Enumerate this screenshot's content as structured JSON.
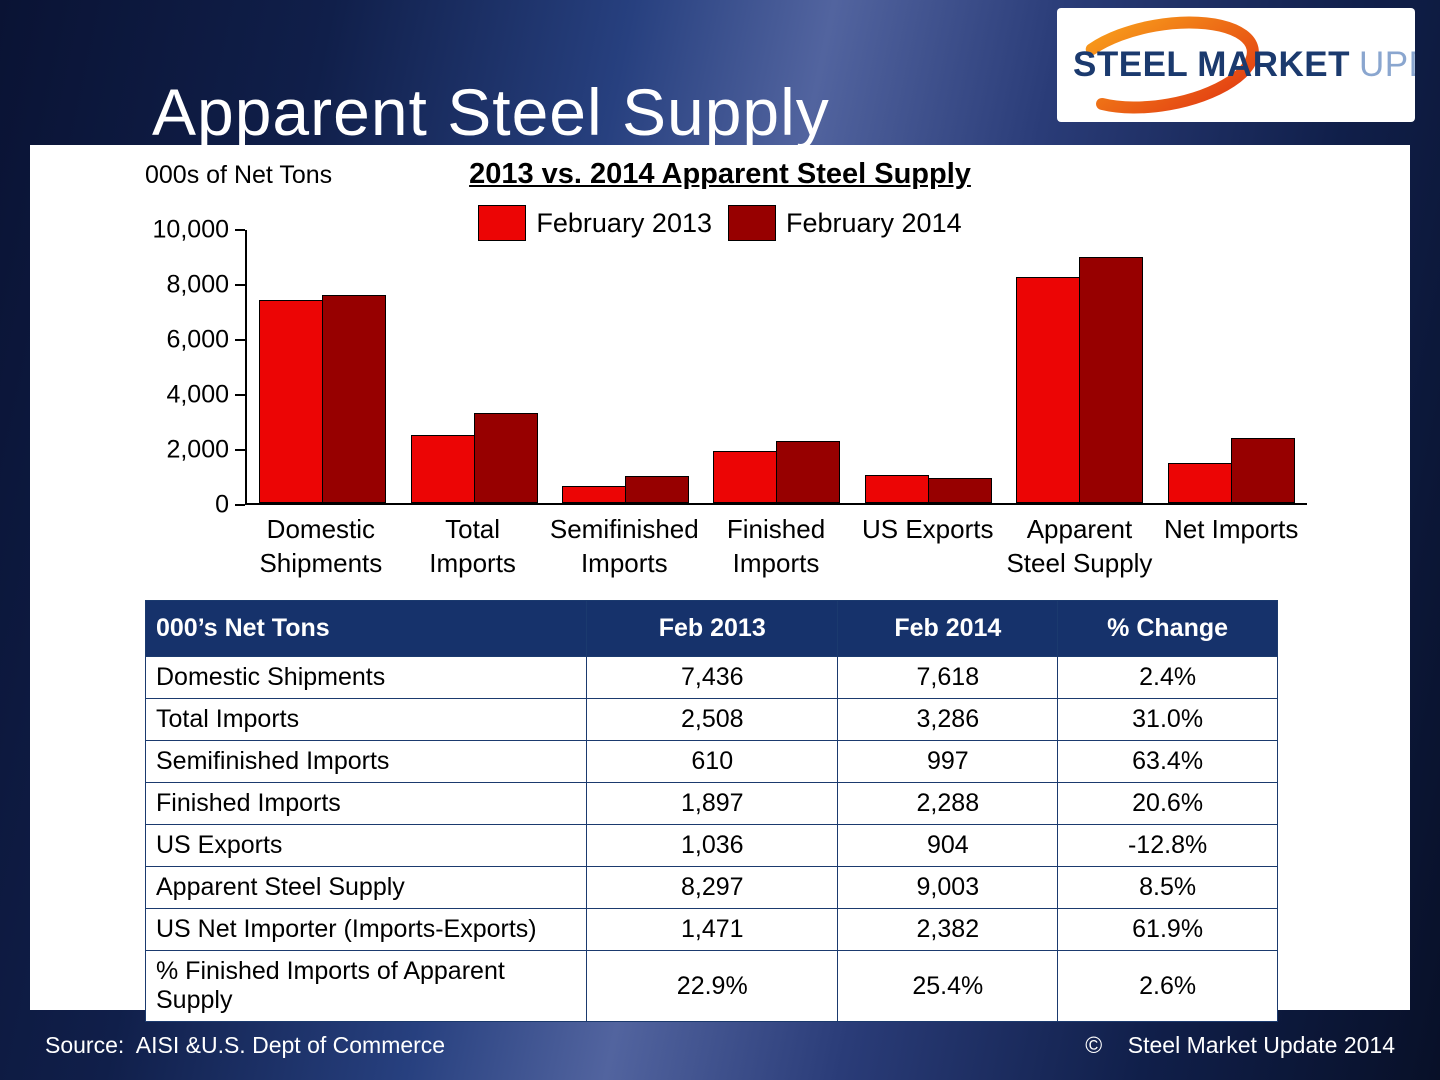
{
  "title": "Apparent Steel Supply",
  "logo": {
    "steel": "STEEL",
    "market": "MARKET",
    "update": "UPDATE"
  },
  "chart_data": {
    "type": "bar",
    "title": "2013 vs. 2014 Apparent Steel Supply",
    "units_label": "000s of Net Tons",
    "categories": [
      "Domestic\nShipments",
      "Total\nImports",
      "Semifinished\nImports",
      "Finished\nImports",
      "US Exports",
      "Apparent\nSteel Supply",
      "Net Imports"
    ],
    "series": [
      {
        "name": "February 2013",
        "color": "#ec0505",
        "values": [
          7436,
          2508,
          610,
          1897,
          1036,
          8297,
          1471
        ]
      },
      {
        "name": "February 2014",
        "color": "#970000",
        "values": [
          7618,
          3286,
          997,
          2288,
          904,
          9003,
          2382
        ]
      }
    ],
    "ylim": [
      0,
      10000
    ],
    "yticks": [
      0,
      2000,
      4000,
      6000,
      8000,
      10000
    ],
    "ytick_labels": [
      "0",
      "2,000",
      "4,000",
      "6,000",
      "8,000",
      "10,000"
    ],
    "grid": false,
    "legend_position": "top"
  },
  "table": {
    "headers": [
      "000’s Net Tons",
      "Feb 2013",
      "Feb 2014",
      "% Change"
    ],
    "rows": [
      [
        "Domestic Shipments",
        "7,436",
        "7,618",
        "2.4%"
      ],
      [
        "Total Imports",
        "2,508",
        "3,286",
        "31.0%"
      ],
      [
        "Semifinished Imports",
        "610",
        "997",
        "63.4%"
      ],
      [
        "Finished Imports",
        "1,897",
        "2,288",
        "20.6%"
      ],
      [
        "US Exports",
        "1,036",
        "904",
        "-12.8%"
      ],
      [
        "Apparent Steel Supply",
        "8,297",
        "9,003",
        "8.5%"
      ],
      [
        "US Net Importer (Imports-Exports)",
        "1,471",
        "2,382",
        "61.9%"
      ],
      [
        "% Finished Imports of Apparent Supply",
        "22.9%",
        "25.4%",
        "2.6%"
      ]
    ]
  },
  "footer": {
    "source": "Source:  AISI &U.S. Dept of Commerce",
    "copyright": "©    Steel Market Update 2014"
  },
  "colors": {
    "feb2013": "#ec0505",
    "feb2014": "#970000",
    "table_header_bg": "#16326b",
    "background_navy": "#0a1334"
  }
}
